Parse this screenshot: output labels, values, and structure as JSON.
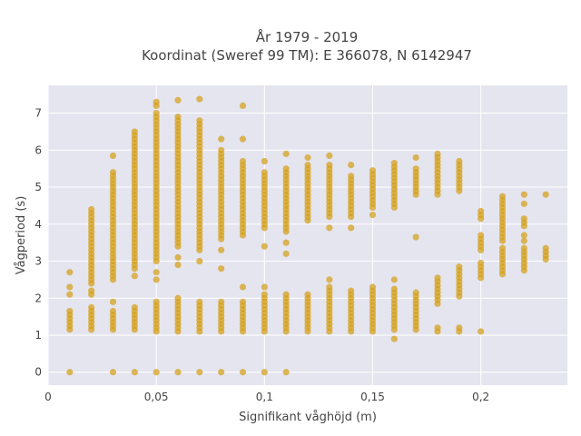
{
  "chart_data": {
    "type": "scatter",
    "title_line1": "År 1979 - 2019",
    "title_line2": "Koordinat (Sweref 99 TM): E 366078, N 6142947",
    "xlabel": "Signifikant våghöjd (m)",
    "ylabel": "Vågperiod (s)",
    "xlim": [
      0,
      0.24
    ],
    "ylim": [
      -0.35,
      7.75
    ],
    "xticks": [
      0,
      0.05,
      0.1,
      0.15,
      0.2
    ],
    "xtick_labels": [
      "0",
      "0,05",
      "0,1",
      "0,15",
      "0,2"
    ],
    "yticks": [
      0,
      1,
      2,
      3,
      4,
      5,
      6,
      7
    ],
    "ytick_labels": [
      "0",
      "1",
      "2",
      "3",
      "4",
      "5",
      "6",
      "7"
    ],
    "grid": true,
    "marker_color": "#D4A017",
    "plot_bg": "#E5E5F0",
    "columns": [
      {
        "x": 0.01,
        "ranges": [
          [
            1.15,
            1.65
          ]
        ],
        "points": [
          0,
          2.1,
          2.3,
          2.7
        ]
      },
      {
        "x": 0.02,
        "ranges": [
          [
            1.15,
            1.75
          ],
          [
            2.4,
            4.4
          ]
        ],
        "points": [
          2.1,
          2.2
        ]
      },
      {
        "x": 0.03,
        "ranges": [
          [
            0,
            0
          ],
          [
            1.15,
            1.65
          ],
          [
            2.5,
            5.4
          ]
        ],
        "points": [
          1.9,
          5.85
        ]
      },
      {
        "x": 0.04,
        "ranges": [
          [
            0,
            0
          ],
          [
            1.15,
            1.8
          ],
          [
            2.9,
            6.5
          ]
        ],
        "points": [
          2.6,
          2.8
        ]
      },
      {
        "x": 0.05,
        "ranges": [
          [
            0,
            0
          ],
          [
            1.1,
            1.95
          ],
          [
            3.0,
            7.0
          ]
        ],
        "points": [
          2.5,
          2.7,
          7.2,
          7.3
        ]
      },
      {
        "x": 0.06,
        "ranges": [
          [
            0,
            0
          ],
          [
            1.1,
            1.95
          ],
          [
            3.4,
            6.9
          ]
        ],
        "points": [
          2.0,
          2.9,
          3.1,
          7.35
        ]
      },
      {
        "x": 0.07,
        "ranges": [
          [
            0,
            0
          ],
          [
            1.1,
            1.95
          ],
          [
            3.3,
            6.8
          ]
        ],
        "points": [
          3.0,
          7.38
        ]
      },
      {
        "x": 0.08,
        "ranges": [
          [
            0,
            0
          ],
          [
            1.1,
            1.95
          ],
          [
            3.6,
            6.0
          ]
        ],
        "points": [
          2.8,
          3.3,
          6.3
        ]
      },
      {
        "x": 0.09,
        "ranges": [
          [
            0,
            0
          ],
          [
            1.1,
            1.95
          ],
          [
            3.7,
            5.7
          ]
        ],
        "points": [
          2.3,
          6.3,
          7.2
        ]
      },
      {
        "x": 0.1,
        "ranges": [
          [
            0,
            0
          ],
          [
            1.1,
            2.15
          ],
          [
            3.9,
            5.45
          ]
        ],
        "points": [
          2.3,
          3.4,
          5.7
        ]
      },
      {
        "x": 0.11,
        "ranges": [
          [
            0,
            0
          ],
          [
            1.1,
            2.15
          ],
          [
            3.8,
            5.5
          ]
        ],
        "points": [
          3.2,
          3.5,
          5.9
        ]
      },
      {
        "x": 0.12,
        "ranges": [
          [
            1.1,
            2.15
          ],
          [
            4.1,
            5.6
          ]
        ],
        "points": [
          5.8
        ]
      },
      {
        "x": 0.13,
        "ranges": [
          [
            1.1,
            2.3
          ],
          [
            4.2,
            5.6
          ]
        ],
        "points": [
          2.5,
          3.9,
          5.85
        ]
      },
      {
        "x": 0.14,
        "ranges": [
          [
            1.1,
            2.25
          ],
          [
            4.3,
            5.35
          ]
        ],
        "points": [
          3.9,
          4.2,
          5.6
        ]
      },
      {
        "x": 0.15,
        "ranges": [
          [
            1.1,
            2.35
          ],
          [
            4.45,
            5.45
          ]
        ],
        "points": [
          4.25
        ]
      },
      {
        "x": 0.16,
        "ranges": [
          [
            1.15,
            2.3
          ],
          [
            4.45,
            5.6
          ]
        ],
        "points": [
          0.9,
          2.5,
          5.65
        ]
      },
      {
        "x": 0.17,
        "ranges": [
          [
            1.15,
            2.2
          ],
          [
            4.8,
            5.5
          ]
        ],
        "points": [
          3.65,
          5.8
        ]
      },
      {
        "x": 0.18,
        "ranges": [
          [
            1.1,
            1.25
          ],
          [
            1.85,
            2.55
          ],
          [
            4.8,
            5.85
          ]
        ],
        "points": [
          5.9
        ]
      },
      {
        "x": 0.19,
        "ranges": [
          [
            1.1,
            1.2
          ],
          [
            2.05,
            2.85
          ],
          [
            4.9,
            5.6
          ]
        ],
        "points": [
          5.7
        ]
      },
      {
        "x": 0.2,
        "ranges": [
          [
            2.55,
            3.0
          ],
          [
            3.3,
            3.75
          ],
          [
            4.15,
            4.35
          ]
        ],
        "points": [
          1.1
        ]
      },
      {
        "x": 0.21,
        "ranges": [
          [
            2.65,
            3.35
          ],
          [
            3.55,
            4.8
          ]
        ],
        "points": []
      },
      {
        "x": 0.22,
        "ranges": [
          [
            2.75,
            3.4
          ],
          [
            3.95,
            4.2
          ]
        ],
        "points": [
          3.55,
          3.7,
          4.55,
          4.8
        ]
      },
      {
        "x": 0.23,
        "ranges": [
          [
            3.05,
            3.35
          ]
        ],
        "points": [
          4.8
        ]
      }
    ]
  }
}
